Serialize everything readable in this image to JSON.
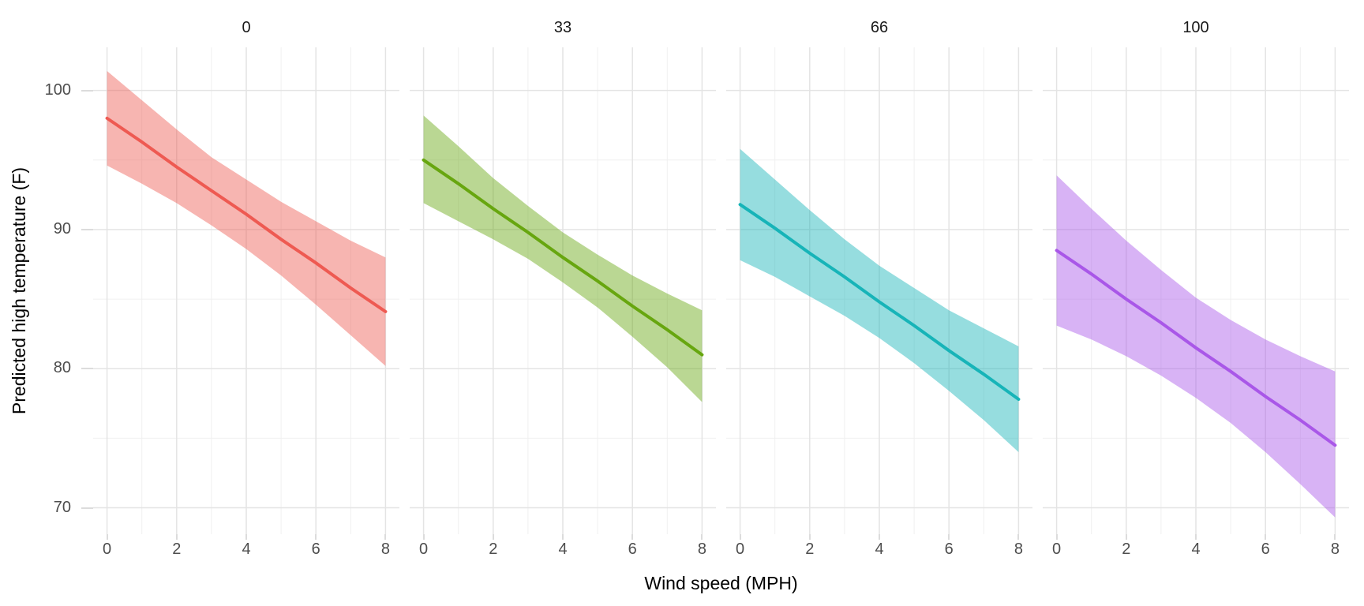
{
  "chart_data": {
    "type": "line",
    "title": "",
    "xlabel": "Wind speed (MPH)",
    "ylabel": "Predicted high temperature (F)",
    "facet_values": [
      "0",
      "33",
      "66",
      "100"
    ],
    "x_ticks": [
      "0",
      "2",
      "4",
      "6",
      "8"
    ],
    "y_ticks": [
      "70",
      "80",
      "90",
      "100"
    ],
    "x_minor_ticks": [
      1,
      3,
      5,
      7
    ],
    "y_minor_ticks": [
      75,
      85,
      95
    ],
    "xlim": [
      -0.4,
      8.4
    ],
    "ylim": [
      68.1,
      103.1
    ],
    "x": [
      0,
      1,
      2,
      3,
      4,
      5,
      6,
      7,
      8
    ],
    "legend": "none",
    "grid": {
      "major_color": "#e4e4e4",
      "minor_color": "#f0f0f0",
      "shown": true
    },
    "ribbon_opacity": 0.45,
    "facets": [
      {
        "label": "0",
        "line_color": "#ee5a52",
        "line": [
          98.0,
          96.3,
          94.5,
          92.8,
          91.1,
          89.3,
          87.6,
          85.8,
          84.1
        ],
        "upper": [
          101.4,
          99.3,
          97.2,
          95.2,
          93.6,
          92.0,
          90.6,
          89.2,
          88.0
        ],
        "lower": [
          94.6,
          93.3,
          91.9,
          90.3,
          88.6,
          86.7,
          84.6,
          82.4,
          80.2
        ]
      },
      {
        "label": "33",
        "line_color": "#67a60f",
        "line": [
          95.0,
          93.3,
          91.5,
          89.8,
          88.0,
          86.3,
          84.5,
          82.8,
          81.0
        ],
        "upper": [
          98.2,
          96.0,
          93.7,
          91.7,
          89.8,
          88.2,
          86.7,
          85.4,
          84.2
        ],
        "lower": [
          91.9,
          90.6,
          89.3,
          87.9,
          86.2,
          84.4,
          82.3,
          80.1,
          77.6
        ]
      },
      {
        "label": "66",
        "line_color": "#17b4b8",
        "line": [
          91.8,
          90.1,
          88.3,
          86.6,
          84.8,
          83.1,
          81.3,
          79.6,
          77.8
        ],
        "upper": [
          95.8,
          93.6,
          91.4,
          89.3,
          87.4,
          85.8,
          84.2,
          82.9,
          81.6
        ],
        "lower": [
          87.8,
          86.6,
          85.2,
          83.8,
          82.2,
          80.4,
          78.4,
          76.3,
          74.0
        ]
      },
      {
        "label": "100",
        "line_color": "#a957e8",
        "line": [
          88.5,
          86.8,
          85.0,
          83.3,
          81.5,
          79.8,
          78.0,
          76.3,
          74.5
        ],
        "upper": [
          93.9,
          91.5,
          89.2,
          87.1,
          85.1,
          83.5,
          82.1,
          80.9,
          79.8
        ],
        "lower": [
          83.1,
          82.1,
          80.9,
          79.5,
          77.9,
          76.1,
          74.0,
          71.7,
          69.3
        ]
      }
    ],
    "text_colors": {
      "ticks": "#4d4d4d",
      "titles": "#000000",
      "strip": "#1a1a1a"
    }
  }
}
